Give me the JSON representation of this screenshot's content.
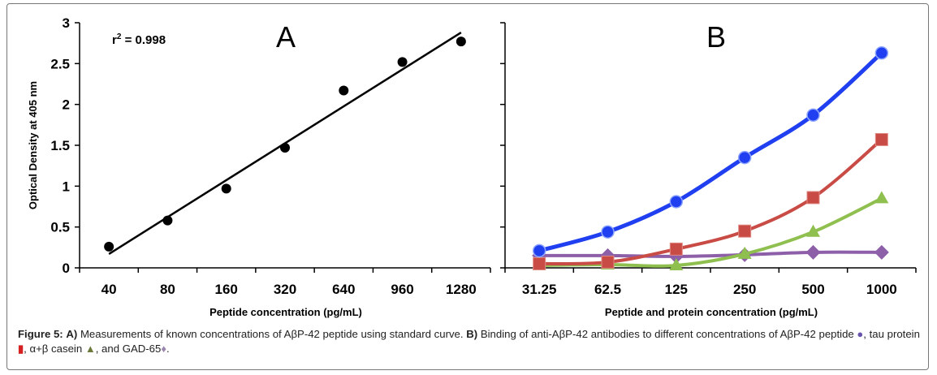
{
  "charts": {
    "left": {
      "panel_label": "A",
      "annotation_prefix": "r",
      "annotation_sup": "2",
      "annotation_value": " = 0.998",
      "xlabel": "Peptide concentration (pg/mL)",
      "ylabel": "Optical Density at 405 nm"
    },
    "right": {
      "panel_label": "B",
      "xlabel": "Peptide and protein concentration (pg/mL)"
    }
  },
  "chart_data": [
    {
      "type": "scatter",
      "title": "",
      "panel": "A",
      "xlabel": "Peptide concentration (pg/mL)",
      "ylabel": "Optical Density at 405 nm",
      "categories": [
        "40",
        "80",
        "160",
        "320",
        "640",
        "960",
        "1280"
      ],
      "values": [
        0.26,
        0.58,
        0.97,
        1.47,
        2.17,
        2.52,
        2.77
      ],
      "fit_line": {
        "start": [
          0.17,
          "40"
        ],
        "end": [
          2.88,
          "1280"
        ]
      },
      "ylim": [
        0,
        3
      ],
      "yticks": [
        "0",
        "0.5",
        "1",
        "1.5",
        "2",
        "2.5",
        "3"
      ],
      "grid": false,
      "color": "#000000"
    },
    {
      "type": "line",
      "title": "",
      "panel": "B",
      "xlabel": "Peptide and protein concentration (pg/mL)",
      "ylabel": "",
      "categories": [
        "31.25",
        "62.5",
        "125",
        "250",
        "500",
        "1000"
      ],
      "ylim": [
        0,
        3
      ],
      "grid": false,
      "series": [
        {
          "marker": "circle",
          "color": "#1f3ff0",
          "values": [
            0.21,
            0.44,
            0.81,
            1.35,
            1.87,
            2.63
          ]
        },
        {
          "marker": "square",
          "color": "#c94b45",
          "values": [
            0.05,
            0.07,
            0.23,
            0.45,
            0.86,
            1.57
          ]
        },
        {
          "marker": "triangle",
          "color": "#8fbf4e",
          "values": [
            0.03,
            0.04,
            0.03,
            0.17,
            0.44,
            0.85
          ]
        },
        {
          "marker": "diamond",
          "color": "#8d5fa8",
          "values": [
            0.15,
            0.15,
            0.14,
            0.16,
            0.19,
            0.19
          ]
        }
      ]
    }
  ],
  "caption": {
    "fig_label": "Figure 5:",
    "a_label": "A)",
    "a_text": " Measurements of known concentrations of AβP-42 peptide using standard curve. ",
    "b_label": "B)",
    "b_text": " Binding of anti-AβP-42 antibodies to different concentrations of AβP-42 peptide ",
    "tau_text": ", tau protein ",
    "casein_text": ", α+β casein ",
    "gad_text": ", and GAD-65",
    "end_text": "."
  }
}
